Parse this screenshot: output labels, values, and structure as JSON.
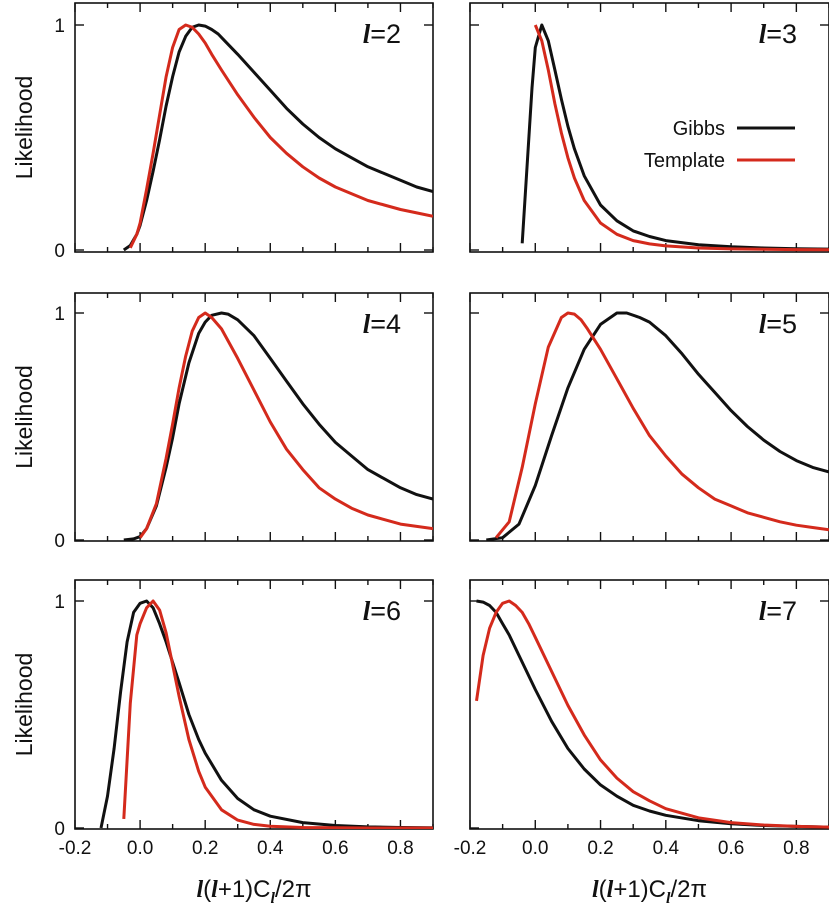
{
  "chart_data": {
    "type": "line",
    "xlim": [
      -0.2,
      0.9
    ],
    "ylim": [
      0,
      1.1
    ],
    "x_ticks": [
      -0.2,
      0.0,
      0.2,
      0.4,
      0.6,
      0.8
    ],
    "x_tick_labels": [
      "-0.2",
      "0.0",
      "0.2",
      "0.4",
      "0.6",
      "0.8"
    ],
    "y_ticks": [
      0,
      1
    ],
    "y_tick_labels": [
      "0",
      "1"
    ],
    "ylabel": "Likelihood",
    "xlabel_parts": {
      "l1": "l",
      "open": "(",
      "l2": "l",
      "rest": "+1)C",
      "sub": "l",
      "tail": "/2π"
    },
    "legend": {
      "placement": "panel l=3, right",
      "entries": [
        {
          "label": "Gibbs",
          "color": "#111111"
        },
        {
          "label": "Template",
          "color": "#d42a1c"
        }
      ]
    },
    "series_names": [
      "Gibbs",
      "Template"
    ],
    "series_colors": [
      "#111111",
      "#d42a1c"
    ],
    "panels": [
      {
        "l_symbol": "l",
        "l_value": "=2",
        "series": [
          {
            "name": "Gibbs",
            "x": [
              -0.05,
              -0.03,
              -0.01,
              0.0,
              0.02,
              0.04,
              0.06,
              0.08,
              0.1,
              0.12,
              0.14,
              0.16,
              0.18,
              0.2,
              0.22,
              0.24,
              0.26,
              0.3,
              0.35,
              0.4,
              0.45,
              0.5,
              0.55,
              0.6,
              0.65,
              0.7,
              0.75,
              0.8,
              0.85,
              0.9
            ],
            "y": [
              0,
              0.02,
              0.07,
              0.11,
              0.22,
              0.35,
              0.49,
              0.64,
              0.77,
              0.88,
              0.95,
              0.99,
              1.0,
              0.995,
              0.98,
              0.96,
              0.93,
              0.87,
              0.79,
              0.71,
              0.63,
              0.56,
              0.5,
              0.45,
              0.41,
              0.37,
              0.34,
              0.31,
              0.28,
              0.26
            ]
          },
          {
            "name": "Template",
            "x": [
              -0.03,
              -0.01,
              0.0,
              0.02,
              0.04,
              0.06,
              0.08,
              0.1,
              0.12,
              0.14,
              0.16,
              0.18,
              0.2,
              0.22,
              0.25,
              0.3,
              0.35,
              0.4,
              0.45,
              0.5,
              0.55,
              0.6,
              0.65,
              0.7,
              0.75,
              0.8,
              0.85,
              0.9
            ],
            "y": [
              0.01,
              0.07,
              0.12,
              0.27,
              0.43,
              0.6,
              0.77,
              0.9,
              0.98,
              1.0,
              0.99,
              0.96,
              0.92,
              0.87,
              0.8,
              0.69,
              0.59,
              0.5,
              0.43,
              0.37,
              0.32,
              0.28,
              0.25,
              0.22,
              0.2,
              0.18,
              0.165,
              0.15
            ]
          }
        ]
      },
      {
        "l_symbol": "l",
        "l_value": "=3",
        "series": [
          {
            "name": "Gibbs",
            "x": [
              -0.04,
              -0.01,
              0.0,
              0.02,
              0.04,
              0.06,
              0.08,
              0.1,
              0.12,
              0.15,
              0.2,
              0.25,
              0.3,
              0.35,
              0.4,
              0.5,
              0.6,
              0.7,
              0.8,
              0.9
            ],
            "y": [
              0.03,
              0.72,
              0.9,
              1.0,
              0.93,
              0.8,
              0.67,
              0.55,
              0.45,
              0.33,
              0.2,
              0.13,
              0.085,
              0.06,
              0.042,
              0.023,
              0.014,
              0.009,
              0.006,
              0.004
            ]
          },
          {
            "name": "Template",
            "x": [
              0.0,
              0.02,
              0.04,
              0.06,
              0.08,
              0.1,
              0.12,
              0.15,
              0.2,
              0.25,
              0.3,
              0.35,
              0.4,
              0.5,
              0.6,
              0.7,
              0.8,
              0.9
            ],
            "y": [
              1.0,
              0.93,
              0.8,
              0.65,
              0.52,
              0.41,
              0.32,
              0.22,
              0.12,
              0.07,
              0.042,
              0.027,
              0.018,
              0.009,
              0.005,
              0.003,
              0.002,
              0.001
            ]
          }
        ]
      },
      {
        "l_symbol": "l",
        "l_value": "=4",
        "series": [
          {
            "name": "Gibbs",
            "x": [
              -0.05,
              -0.02,
              0.0,
              0.02,
              0.05,
              0.08,
              0.1,
              0.12,
              0.15,
              0.18,
              0.2,
              0.22,
              0.25,
              0.27,
              0.3,
              0.35,
              0.4,
              0.45,
              0.5,
              0.55,
              0.6,
              0.65,
              0.7,
              0.75,
              0.8,
              0.85,
              0.9
            ],
            "y": [
              0,
              0.005,
              0.015,
              0.05,
              0.15,
              0.32,
              0.45,
              0.6,
              0.78,
              0.91,
              0.96,
              0.99,
              1.0,
              0.995,
              0.97,
              0.9,
              0.8,
              0.7,
              0.6,
              0.51,
              0.43,
              0.37,
              0.31,
              0.27,
              0.23,
              0.2,
              0.18
            ]
          },
          {
            "name": "Template",
            "x": [
              0.0,
              0.02,
              0.05,
              0.08,
              0.1,
              0.12,
              0.14,
              0.16,
              0.18,
              0.2,
              0.22,
              0.25,
              0.3,
              0.35,
              0.4,
              0.45,
              0.5,
              0.55,
              0.6,
              0.65,
              0.7,
              0.75,
              0.8,
              0.85,
              0.9
            ],
            "y": [
              0.01,
              0.05,
              0.16,
              0.36,
              0.51,
              0.67,
              0.81,
              0.92,
              0.98,
              1.0,
              0.98,
              0.93,
              0.8,
              0.66,
              0.52,
              0.4,
              0.31,
              0.23,
              0.18,
              0.14,
              0.11,
              0.09,
              0.07,
              0.06,
              0.05
            ]
          }
        ]
      },
      {
        "l_symbol": "l",
        "l_value": "=5",
        "series": [
          {
            "name": "Gibbs",
            "x": [
              -0.15,
              -0.1,
              -0.05,
              0.0,
              0.05,
              0.1,
              0.15,
              0.2,
              0.25,
              0.28,
              0.32,
              0.35,
              0.4,
              0.45,
              0.5,
              0.55,
              0.6,
              0.65,
              0.7,
              0.75,
              0.8,
              0.85,
              0.9
            ],
            "y": [
              0,
              0.01,
              0.07,
              0.24,
              0.46,
              0.67,
              0.84,
              0.95,
              1.0,
              1.0,
              0.98,
              0.96,
              0.9,
              0.82,
              0.73,
              0.65,
              0.57,
              0.5,
              0.44,
              0.39,
              0.35,
              0.32,
              0.3
            ]
          },
          {
            "name": "Template",
            "x": [
              -0.12,
              -0.08,
              -0.04,
              0.0,
              0.04,
              0.08,
              0.1,
              0.12,
              0.14,
              0.16,
              0.2,
              0.25,
              0.3,
              0.35,
              0.4,
              0.45,
              0.5,
              0.55,
              0.6,
              0.65,
              0.7,
              0.75,
              0.8,
              0.85,
              0.9
            ],
            "y": [
              0.01,
              0.08,
              0.32,
              0.6,
              0.85,
              0.98,
              1.0,
              0.995,
              0.97,
              0.93,
              0.84,
              0.71,
              0.58,
              0.46,
              0.37,
              0.29,
              0.23,
              0.18,
              0.15,
              0.12,
              0.1,
              0.08,
              0.065,
              0.055,
              0.045
            ]
          }
        ]
      },
      {
        "l_symbol": "l",
        "l_value": "=6",
        "series": [
          {
            "name": "Gibbs",
            "x": [
              -0.12,
              -0.1,
              -0.08,
              -0.06,
              -0.04,
              -0.02,
              0.0,
              0.02,
              0.04,
              0.06,
              0.08,
              0.1,
              0.12,
              0.15,
              0.18,
              0.2,
              0.25,
              0.3,
              0.35,
              0.4,
              0.5,
              0.6,
              0.7,
              0.8,
              0.9
            ],
            "y": [
              0,
              0.14,
              0.35,
              0.6,
              0.82,
              0.95,
              0.99,
              1.0,
              0.97,
              0.9,
              0.82,
              0.73,
              0.64,
              0.5,
              0.39,
              0.33,
              0.21,
              0.13,
              0.08,
              0.052,
              0.024,
              0.011,
              0.005,
              0.002,
              0.001
            ]
          },
          {
            "name": "Template",
            "x": [
              -0.05,
              -0.03,
              -0.01,
              0.0,
              0.02,
              0.04,
              0.06,
              0.08,
              0.1,
              0.12,
              0.15,
              0.18,
              0.2,
              0.25,
              0.3,
              0.35,
              0.4,
              0.5,
              0.6,
              0.7,
              0.8,
              0.9
            ],
            "y": [
              0.04,
              0.55,
              0.85,
              0.9,
              0.97,
              1.0,
              0.96,
              0.86,
              0.72,
              0.58,
              0.39,
              0.25,
              0.18,
              0.08,
              0.035,
              0.016,
              0.008,
              0.002,
              0.001,
              0.0,
              0.0,
              0.0
            ]
          }
        ]
      },
      {
        "l_symbol": "l",
        "l_value": "=7",
        "series": [
          {
            "name": "Gibbs",
            "x": [
              -0.18,
              -0.16,
              -0.14,
              -0.12,
              -0.1,
              -0.08,
              -0.05,
              0.0,
              0.05,
              0.1,
              0.15,
              0.2,
              0.25,
              0.3,
              0.35,
              0.4,
              0.5,
              0.6,
              0.7,
              0.8,
              0.9
            ],
            "y": [
              1.0,
              0.995,
              0.98,
              0.95,
              0.9,
              0.85,
              0.76,
              0.61,
              0.47,
              0.35,
              0.26,
              0.19,
              0.14,
              0.1,
              0.075,
              0.056,
              0.032,
              0.019,
              0.011,
              0.007,
              0.004
            ]
          },
          {
            "name": "Template",
            "x": [
              -0.18,
              -0.16,
              -0.14,
              -0.12,
              -0.1,
              -0.08,
              -0.06,
              -0.04,
              -0.02,
              0.0,
              0.05,
              0.1,
              0.15,
              0.2,
              0.25,
              0.3,
              0.35,
              0.4,
              0.5,
              0.6,
              0.7,
              0.8,
              0.9
            ],
            "y": [
              0.56,
              0.76,
              0.88,
              0.95,
              0.99,
              1.0,
              0.98,
              0.95,
              0.9,
              0.84,
              0.69,
              0.54,
              0.41,
              0.3,
              0.22,
              0.16,
              0.12,
              0.085,
              0.045,
              0.024,
              0.013,
              0.007,
              0.004
            ]
          }
        ]
      }
    ]
  }
}
